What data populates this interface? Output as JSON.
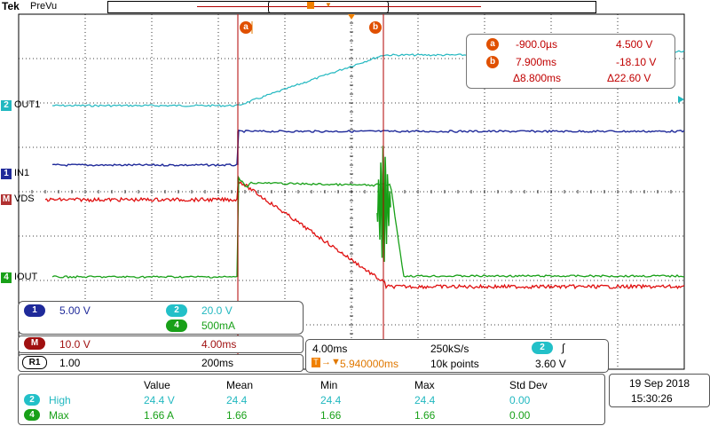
{
  "header": {
    "brand": "Tek",
    "status": "PreVu"
  },
  "channels": [
    {
      "tag": "2",
      "label": "OUT1",
      "color": "#22b8c0"
    },
    {
      "tag": "1",
      "label": "IN1",
      "color": "#1f2a9a"
    },
    {
      "tag": "M",
      "label": "VDS",
      "color": "#e01010"
    },
    {
      "tag": "4",
      "label": "IOUT",
      "color": "#18a018"
    }
  ],
  "cursor_markers": {
    "a": "a",
    "b": "b"
  },
  "cursors": {
    "a": {
      "time": "-900.0µs",
      "value": "4.500 V"
    },
    "b": {
      "time": "7.900ms",
      "value": "-18.10 V"
    },
    "delta": {
      "time": "Δ8.800ms",
      "value": "Δ22.60 V"
    }
  },
  "scales": {
    "ch1": {
      "id": "1",
      "value": "5.00 V"
    },
    "ch2": {
      "id": "2",
      "value": "20.0 V"
    },
    "ch4": {
      "id": "4",
      "value": "500mA"
    },
    "math": {
      "id": "M",
      "value": "10.0 V",
      "time": "4.00ms"
    },
    "ref": {
      "id": "R1",
      "value": "1.00",
      "time": "200ms"
    }
  },
  "timebase": {
    "scale": "4.00ms",
    "rate": "250kS/s",
    "trig_ch": "2",
    "trig_slope": "∫",
    "trig_pos": "5.940000ms",
    "points": "10k points",
    "trig_level": "3.60 V"
  },
  "measure": {
    "headers": [
      "Value",
      "Mean",
      "Min",
      "Max",
      "Std Dev"
    ],
    "rows": [
      {
        "ch": "2",
        "name": "High",
        "values": [
          "24.4 V",
          "24.4",
          "24.4",
          "24.4",
          "0.00"
        ]
      },
      {
        "ch": "4",
        "name": "Max",
        "values": [
          "1.66 A",
          "1.66",
          "1.66",
          "1.66",
          "0.00"
        ]
      }
    ]
  },
  "datetime": {
    "date": "19 Sep  2018",
    "time": "15:30:26"
  },
  "colors": {
    "ch1": "#1f2a9a",
    "ch2": "#22b8c0",
    "ch4": "#18a018",
    "math": "#e01010",
    "cursor": "#e07800",
    "cursor_line": "#b00000"
  }
}
